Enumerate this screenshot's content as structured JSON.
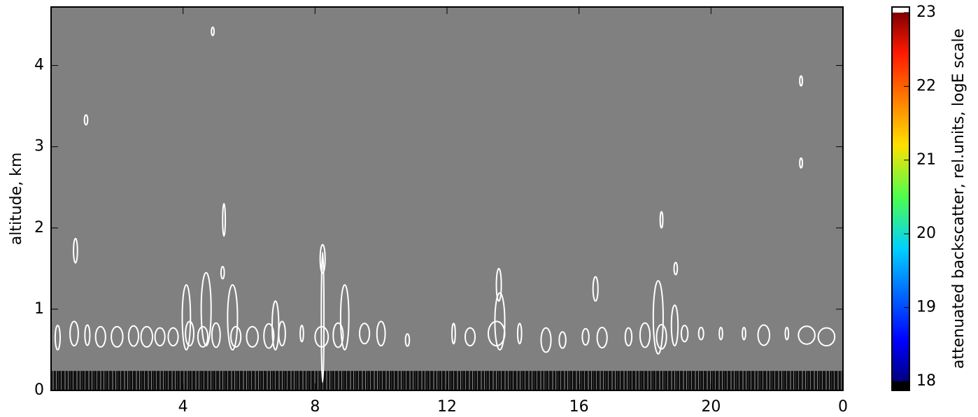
{
  "chart_data": {
    "type": "heatmap",
    "y_label": "altitude, km",
    "xlim": [
      0,
      24
    ],
    "xticks": [
      4,
      8,
      12,
      16,
      20,
      {
        "value": 24,
        "label": "0"
      }
    ],
    "ylim": [
      0,
      4.72
    ],
    "yticks": [
      0,
      1,
      2,
      3,
      4
    ],
    "background_color": "#808080",
    "contour_color": "#ffffff",
    "surface_layer_top": 0.24,
    "contours": {
      "x": [
        0.74,
        1.06,
        4.9,
        5.24,
        5.2,
        8.23,
        8.23,
        18.5,
        18.93,
        22.73,
        22.73,
        16.5,
        13.57,
        0.2,
        0.7,
        1.1,
        1.5,
        2.0,
        2.5,
        2.9,
        3.3,
        3.7,
        4.2,
        4.6,
        5.0,
        5.6,
        6.1,
        6.6,
        7.0,
        7.6,
        8.2,
        8.7,
        9.5,
        10.0,
        10.8,
        12.2,
        12.7,
        13.5,
        14.2,
        15.0,
        15.5,
        16.2,
        16.7,
        17.5,
        18.0,
        18.5,
        19.2,
        19.7,
        20.3,
        21.0,
        21.6,
        22.3,
        22.9,
        23.5,
        4.1,
        4.7,
        5.5,
        6.8,
        8.9,
        13.6,
        18.4,
        18.9
      ],
      "y": [
        1.72,
        3.33,
        4.42,
        2.1,
        1.45,
        1.62,
        0.9,
        2.1,
        1.5,
        3.81,
        2.8,
        1.25,
        1.3,
        0.65,
        0.7,
        0.68,
        0.66,
        0.66,
        0.67,
        0.66,
        0.66,
        0.66,
        0.7,
        0.66,
        0.68,
        0.66,
        0.66,
        0.67,
        0.7,
        0.7,
        0.66,
        0.68,
        0.7,
        0.7,
        0.62,
        0.7,
        0.66,
        0.7,
        0.7,
        0.62,
        0.62,
        0.66,
        0.65,
        0.66,
        0.68,
        0.66,
        0.7,
        0.7,
        0.7,
        0.7,
        0.68,
        0.7,
        0.68,
        0.66,
        0.9,
        1.0,
        0.9,
        0.8,
        0.9,
        0.85,
        0.9,
        0.8
      ],
      "w": [
        0.12,
        0.1,
        0.08,
        0.08,
        0.1,
        0.15,
        0.08,
        0.08,
        0.1,
        0.08,
        0.08,
        0.15,
        0.15,
        0.15,
        0.25,
        0.15,
        0.3,
        0.35,
        0.3,
        0.35,
        0.3,
        0.3,
        0.25,
        0.3,
        0.25,
        0.3,
        0.35,
        0.3,
        0.2,
        0.1,
        0.4,
        0.3,
        0.3,
        0.25,
        0.12,
        0.1,
        0.3,
        0.5,
        0.12,
        0.3,
        0.2,
        0.2,
        0.3,
        0.2,
        0.3,
        0.3,
        0.2,
        0.15,
        0.1,
        0.1,
        0.35,
        0.1,
        0.5,
        0.5,
        0.25,
        0.3,
        0.3,
        0.2,
        0.25,
        0.3,
        0.3,
        0.2
      ],
      "h": [
        0.3,
        0.12,
        0.1,
        0.4,
        0.15,
        0.35,
        1.6,
        0.2,
        0.15,
        0.12,
        0.12,
        0.3,
        0.4,
        0.3,
        0.3,
        0.25,
        0.25,
        0.25,
        0.25,
        0.25,
        0.22,
        0.22,
        0.3,
        0.25,
        0.3,
        0.25,
        0.25,
        0.3,
        0.3,
        0.2,
        0.25,
        0.3,
        0.25,
        0.3,
        0.15,
        0.25,
        0.22,
        0.3,
        0.25,
        0.3,
        0.2,
        0.2,
        0.25,
        0.22,
        0.3,
        0.3,
        0.2,
        0.15,
        0.15,
        0.15,
        0.25,
        0.15,
        0.22,
        0.22,
        0.8,
        0.9,
        0.8,
        0.6,
        0.8,
        0.7,
        0.9,
        0.5
      ]
    },
    "colorbar": {
      "label": "attenuated backscatter, rel.units, logE scale",
      "lim": [
        18,
        23
      ],
      "ticks": [
        18,
        19,
        20,
        21,
        22,
        23
      ]
    }
  }
}
